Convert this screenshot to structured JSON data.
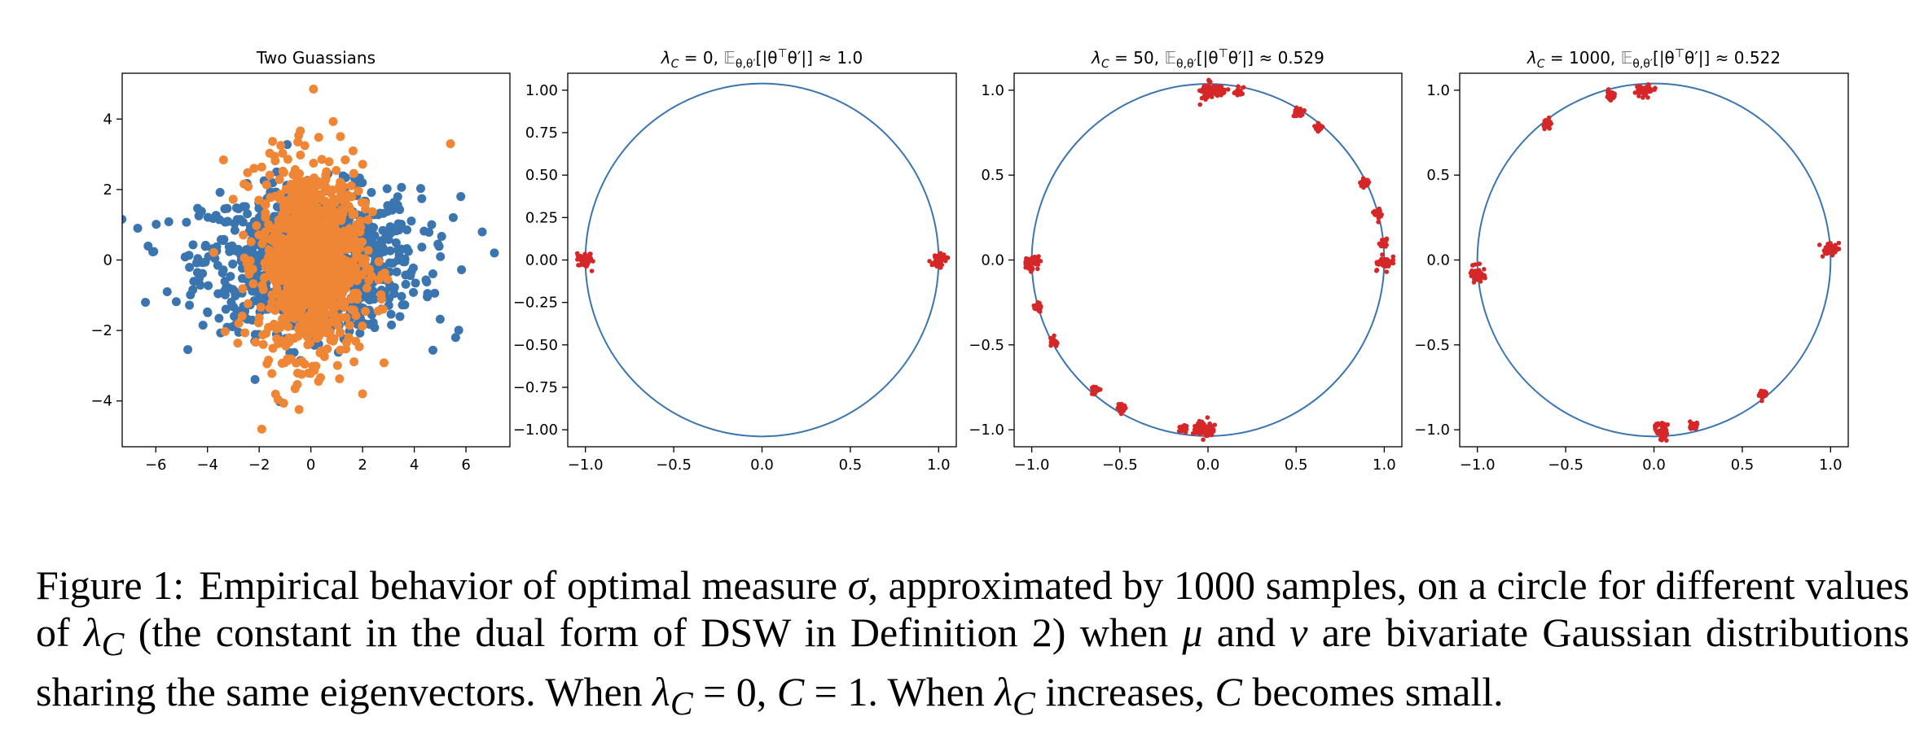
{
  "figure": {
    "caption_label": "Figure 1:",
    "caption": {
      "t1": "Empirical behavior of optimal measure ",
      "sigma": "σ",
      "t2": ", approximated by 1000 samples, on a circle for different values of ",
      "lc1": "λ",
      "c_sub": "C",
      "t3": " (the constant in the dual form of DSW in Definition 2) when ",
      "mu": "μ",
      "t4": " and ",
      "nu": "ν",
      "t5": " are bivariate Gaussian distributions sharing the same eigenvectors. When ",
      "t6": " = 0, ",
      "c1": "C",
      "t7": " = 1. When ",
      "t8": " increases, ",
      "c2": "C",
      "t9": " becomes small."
    }
  },
  "colors": {
    "blue": "#3b75af",
    "orange": "#ef8636",
    "red": "#d62728",
    "circle": "#3b75af"
  },
  "chart_data": [
    {
      "type": "scatter",
      "title": "Two Guassians",
      "xlim": [
        -7.3,
        7.7
      ],
      "ylim": [
        -5.3,
        5.3
      ],
      "xticks": [
        -6,
        -4,
        -2,
        0,
        2,
        4,
        6
      ],
      "yticks": [
        -4,
        -2,
        0,
        2,
        4
      ],
      "series": [
        {
          "color": "blue",
          "sample_count": 1000,
          "mean": [
            0,
            0
          ],
          "std": [
            2.1,
            1.0
          ],
          "notable_points": [
            [
              7.1,
              0.2
            ],
            [
              -6.4,
              -1.2
            ],
            [
              5.6,
              -2.2
            ],
            [
              -6.7,
              0.9
            ],
            [
              5.8,
              1.8
            ]
          ]
        },
        {
          "color": "orange",
          "sample_count": 1000,
          "mean": [
            0,
            0
          ],
          "std": [
            1.0,
            1.35
          ],
          "notable_points": [
            [
              0.1,
              4.85
            ],
            [
              -1.9,
              -4.8
            ],
            [
              5.4,
              3.3
            ],
            [
              -2.2,
              2.6
            ],
            [
              2.0,
              -3.8
            ]
          ]
        }
      ]
    },
    {
      "type": "scatter",
      "title": {
        "lambda": "λ",
        "sub": "C",
        "value": " = 0, ",
        "e": "𝔼",
        "esub": "θ,θ′",
        "expr": "[|θ",
        "sup": "⊤",
        "expr2": "θ′|] ≈ 1.0"
      },
      "xlim": [
        -1.1,
        1.1
      ],
      "ylim": [
        -1.1,
        1.1
      ],
      "xticks": [
        -1.0,
        -0.5,
        0.0,
        0.5,
        1.0
      ],
      "yticks": [
        -1.0,
        -0.75,
        -0.5,
        -0.25,
        0.0,
        0.25,
        0.5,
        0.75,
        1.0
      ],
      "ytick_labels": [
        "−1.00",
        "−0.75",
        "−0.50",
        "−0.25",
        "0.00",
        "0.25",
        "0.50",
        "0.75",
        "1.00"
      ],
      "xtick_labels": [
        "−1.0",
        "−0.5",
        "0.0",
        "0.5",
        "1.0"
      ],
      "unit_circle": true,
      "clusters": [
        {
          "angle_deg": 180,
          "size": 1.0
        },
        {
          "angle_deg": 0,
          "size": 0.9
        }
      ]
    },
    {
      "type": "scatter",
      "title": {
        "lambda": "λ",
        "sub": "C",
        "value": " = 50, ",
        "e": "𝔼",
        "esub": "θ,θ′",
        "expr": "[|θ",
        "sup": "⊤",
        "expr2": "θ′|] ≈ 0.529"
      },
      "xlim": [
        -1.1,
        1.1
      ],
      "ylim": [
        -1.1,
        1.1
      ],
      "xticks": [
        -1.0,
        -0.5,
        0.0,
        0.5,
        1.0
      ],
      "yticks": [
        -1.0,
        -0.5,
        0.0,
        0.5,
        1.0
      ],
      "ytick_labels": [
        "−1.0",
        "−0.5",
        "0.0",
        "0.5",
        "1.0"
      ],
      "xtick_labels": [
        "−1.0",
        "−0.5",
        "0.0",
        "0.5",
        "1.0"
      ],
      "unit_circle": true,
      "clusters": [
        {
          "angle_deg": 90,
          "size": 1.0
        },
        {
          "angle_deg": 86,
          "size": 0.6
        },
        {
          "angle_deg": 80,
          "size": 0.4
        },
        {
          "angle_deg": 60,
          "size": 0.5
        },
        {
          "angle_deg": 51,
          "size": 0.4
        },
        {
          "angle_deg": 27,
          "size": 0.4
        },
        {
          "angle_deg": 16,
          "size": 0.5
        },
        {
          "angle_deg": 6,
          "size": 0.4
        },
        {
          "angle_deg": -1,
          "size": 0.9
        },
        {
          "angle_deg": 181,
          "size": 1.0
        },
        {
          "angle_deg": 196,
          "size": 0.4
        },
        {
          "angle_deg": 209,
          "size": 0.4
        },
        {
          "angle_deg": 230,
          "size": 0.4
        },
        {
          "angle_deg": 241,
          "size": 0.5
        },
        {
          "angle_deg": 262,
          "size": 0.4
        },
        {
          "angle_deg": 269,
          "size": 1.0
        },
        {
          "angle_deg": 267,
          "size": 0.7
        }
      ]
    },
    {
      "type": "scatter",
      "title": {
        "lambda": "λ",
        "sub": "C",
        "value": " = 1000, ",
        "e": "𝔼",
        "esub": "θ,θ′",
        "expr": "[|θ",
        "sup": "⊤",
        "expr2": "θ′|] ≈ 0.522"
      },
      "xlim": [
        -1.1,
        1.1
      ],
      "ylim": [
        -1.1,
        1.1
      ],
      "xticks": [
        -1.0,
        -0.5,
        0.0,
        0.5,
        1.0
      ],
      "yticks": [
        -1.0,
        -0.5,
        0.0,
        0.5,
        1.0
      ],
      "ytick_labels": [
        "−1.0",
        "−0.5",
        "0.0",
        "0.5",
        "1.0"
      ],
      "xtick_labels": [
        "−1.0",
        "−0.5",
        "0.0",
        "0.5",
        "1.0"
      ],
      "unit_circle": true,
      "clusters": [
        {
          "angle_deg": 93,
          "size": 1.0
        },
        {
          "angle_deg": 104,
          "size": 0.5
        },
        {
          "angle_deg": 127,
          "size": 0.4
        },
        {
          "angle_deg": 4,
          "size": 0.9
        },
        {
          "angle_deg": 185,
          "size": 1.0
        },
        {
          "angle_deg": 273,
          "size": 1.0
        },
        {
          "angle_deg": 283,
          "size": 0.4
        },
        {
          "angle_deg": 308,
          "size": 0.4
        }
      ]
    }
  ]
}
